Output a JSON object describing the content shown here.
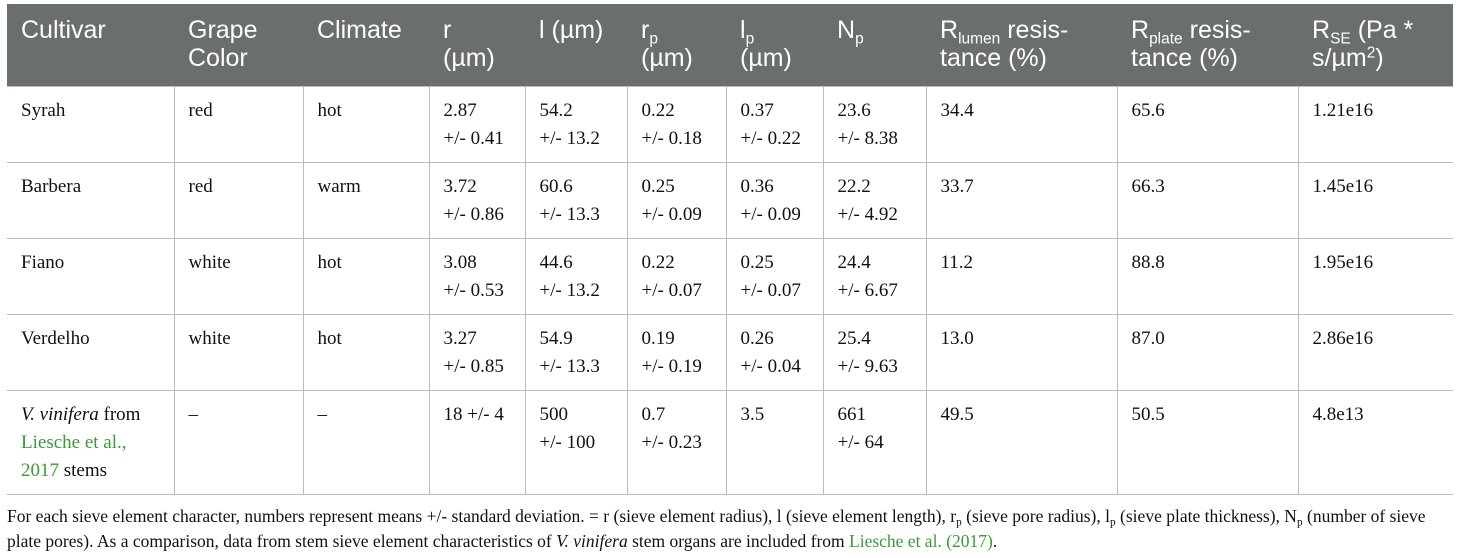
{
  "table": {
    "headers": {
      "cultivar": "Cultivar",
      "grape_color_line1": "Grape",
      "grape_color_line2": "Color",
      "climate": "Climate",
      "r_line1": "r",
      "r_line2": "(µm)",
      "l": "l (µm)",
      "rp_base": "r",
      "rp_sub": "p",
      "rp_unit": "(µm)",
      "lp_base": "l",
      "lp_sub": "p",
      "lp_unit": "(µm)",
      "np_base": "N",
      "np_sub": "p",
      "rlumen_base": "R",
      "rlumen_sub": "lumen",
      "rlumen_tail": " resis-",
      "rlumen_line2": "tance (%)",
      "rplate_base": "R",
      "rplate_sub": "plate",
      "rplate_tail": " resis-",
      "rplate_line2": "tance (%)",
      "rse_base": "R",
      "rse_sub": "SE",
      "rse_tail": " (Pa *",
      "rse_line2_base": "s/µm",
      "rse_line2_sup": "2",
      "rse_line2_tail": ")"
    },
    "rows": [
      {
        "cultivar": "Syrah",
        "color": "red",
        "climate": "hot",
        "r": "2.87",
        "r_sd": "+/- 0.41",
        "l": "54.2",
        "l_sd": "+/- 13.2",
        "rp": "0.22",
        "rp_sd": "+/- 0.18",
        "lp": "0.37",
        "lp_sd": "+/- 0.22",
        "np": "23.6",
        "np_sd": "+/- 8.38",
        "rlumen": "34.4",
        "rplate": "65.6",
        "rse": "1.21e16"
      },
      {
        "cultivar": "Barbera",
        "color": "red",
        "climate": "warm",
        "r": "3.72",
        "r_sd": "+/- 0.86",
        "l": "60.6",
        "l_sd": "+/- 13.3",
        "rp": "0.25",
        "rp_sd": "+/- 0.09",
        "lp": "0.36",
        "lp_sd": "+/- 0.09",
        "np": "22.2",
        "np_sd": "+/- 4.92",
        "rlumen": "33.7",
        "rplate": "66.3",
        "rse": "1.45e16"
      },
      {
        "cultivar": "Fiano",
        "color": "white",
        "climate": "hot",
        "r": "3.08",
        "r_sd": "+/- 0.53",
        "l": "44.6",
        "l_sd": "+/- 13.2",
        "rp": "0.22",
        "rp_sd": "+/- 0.07",
        "lp": "0.25",
        "lp_sd": "+/- 0.07",
        "np": "24.4",
        "np_sd": "+/- 6.67",
        "rlumen": "11.2",
        "rplate": "88.8",
        "rse": "1.95e16"
      },
      {
        "cultivar": "Verdelho",
        "color": "white",
        "climate": "hot",
        "r": "3.27",
        "r_sd": "+/- 0.85",
        "l": "54.9",
        "l_sd": "+/- 13.3",
        "rp": "0.19",
        "rp_sd": "+/- 0.19",
        "lp": "0.26",
        "lp_sd": "+/- 0.04",
        "np": "25.4",
        "np_sd": "+/- 9.63",
        "rlumen": "13.0",
        "rplate": "87.0",
        "rse": "2.86e16"
      }
    ],
    "last_row": {
      "cultivar_italic": "V. vinifera",
      "cultivar_from": " from",
      "cultivar_link_line1": "Liesche et al.,",
      "cultivar_link_line2": "2017",
      "cultivar_tail": " stems",
      "color": "–",
      "climate": "–",
      "r": "18 +/- 4",
      "l": "500",
      "l_sd": "+/- 100",
      "rp": "0.7",
      "rp_sd": "+/- 0.23",
      "lp": "3.5",
      "np": "661",
      "np_sd": "+/- 64",
      "rlumen": "49.5",
      "rplate": "50.5",
      "rse": "4.8e13"
    }
  },
  "footnote": {
    "part1": "For each sieve element character, numbers represent means +/- standard deviation. = r (sieve element radius), l (sieve element length), r",
    "rp_sub": "p",
    "part2": " (sieve pore radius), l",
    "lp_sub": "p",
    "part3": " (sieve plate thickness), N",
    "np_sub": "p",
    "part4": " (number of sieve plate pores). As a comparison, data from stem sieve element characteristics of ",
    "species_italic": "V. vinifera",
    "part5": " stem organs are included from ",
    "link_text": "Liesche et al. (2017)",
    "part6": "."
  },
  "colors": {
    "header_bg": "#6a6e6f",
    "header_text": "#ffffff",
    "link": "#3a9a35",
    "grid": "#b9bcbd"
  }
}
